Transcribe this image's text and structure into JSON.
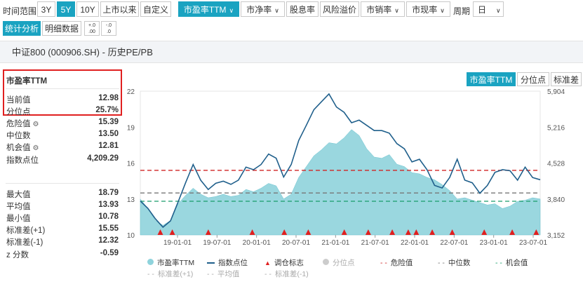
{
  "toolbar": {
    "range_label": "时间范围",
    "range_buttons": [
      "3Y",
      "5Y",
      "10Y",
      "上市以来",
      "自定义"
    ],
    "active_range": "5Y",
    "metrics": [
      "市盈率TTM",
      "市净率",
      "股息率",
      "风险溢价",
      "市销率",
      "市现率"
    ],
    "active_metric": "市盈率TTM",
    "period_label": "周期",
    "period_value": "日"
  },
  "subtabs": [
    "统计分析",
    "明细数据"
  ],
  "active_subtab": "统计分析",
  "page_title": "中证800 (000906.SH) - 历史PE/PB",
  "stats": {
    "header": "市盈率TTM",
    "current_label": "当前值",
    "current_value": "12.98",
    "pct_label": "分位点",
    "pct_value": "25.7%",
    "danger_label": "危险值",
    "danger_value": "15.39",
    "median_label": "中位数",
    "median_value": "13.50",
    "chance_label": "机会值",
    "chance_value": "12.81",
    "index_label": "指数点位",
    "index_value": "4,209.29",
    "max_label": "最大值",
    "max_value": "18.79",
    "avg_label": "平均值",
    "avg_value": "13.93",
    "min_label": "最小值",
    "min_value": "10.78",
    "sdp_label": "标准差(+1)",
    "sdp_value": "15.55",
    "sdm_label": "标准差(-1)",
    "sdm_value": "12.32",
    "z_label": "z 分数",
    "z_value": "-0.59"
  },
  "right_buttons": [
    "市盈率TTM",
    "分位点",
    "标准差"
  ],
  "active_right": "市盈率TTM",
  "chart_data": {
    "type": "area",
    "yaxis_left": [
      "22",
      "19",
      "16",
      "13",
      "10"
    ],
    "yaxis_right": [
      "5,904",
      "5,216",
      "4,528",
      "3,840",
      "3,152"
    ],
    "ylim_left": [
      10,
      22
    ],
    "ylim_right": [
      3152,
      5904
    ],
    "x_ticks": [
      "19-01-01",
      "19-07-01",
      "20-01-01",
      "20-07-01",
      "21-01-01",
      "21-07-01",
      "22-01-01",
      "22-07-01",
      "23-01-01",
      "23-07-01"
    ],
    "danger_value": 15.39,
    "median_value": 13.5,
    "chance_value": 12.81,
    "series": [
      {
        "name": "市盈率TTM",
        "color": "#8fd3dc",
        "values": [
          13.0,
          12.2,
          11.2,
          10.8,
          11.2,
          12.6,
          13.3,
          13.9,
          13.4,
          13.1,
          13.2,
          13.4,
          13.2,
          13.3,
          13.8,
          13.6,
          13.9,
          14.3,
          14.1,
          13.0,
          13.4,
          14.8,
          15.7,
          16.6,
          17.1,
          17.7,
          17.6,
          18.1,
          18.8,
          18.3,
          17.2,
          16.5,
          16.4,
          16.7,
          15.9,
          15.7,
          15.2,
          15.1,
          14.8,
          14.6,
          14.2,
          13.7,
          13.0,
          13.1,
          12.9,
          12.7,
          12.5,
          12.6,
          12.2,
          12.4,
          12.8,
          12.9,
          13.1,
          13.0
        ]
      },
      {
        "name": "指数点位",
        "color": "#1f5f8b",
        "values": [
          3800,
          3660,
          3460,
          3300,
          3420,
          3780,
          4150,
          4500,
          4200,
          4020,
          4140,
          4180,
          4120,
          4200,
          4450,
          4400,
          4500,
          4700,
          4620,
          4260,
          4500,
          4960,
          5250,
          5550,
          5700,
          5850,
          5600,
          5500,
          5300,
          5350,
          5250,
          5150,
          5150,
          5100,
          4900,
          4800,
          4550,
          4600,
          4400,
          4100,
          4050,
          4250,
          4600,
          4200,
          4150,
          3950,
          4100,
          4350,
          4400,
          4380,
          4200,
          4450,
          4250,
          4209
        ]
      }
    ],
    "markers_x": [
      0.05,
      0.08,
      0.17,
      0.28,
      0.36,
      0.42,
      0.51,
      0.57,
      0.63,
      0.67,
      0.69,
      0.73,
      0.78,
      0.86,
      0.93,
      0.99
    ],
    "legend": [
      "市盈率TTM",
      "指数点位",
      "调仓标志",
      "分位点",
      "危险值",
      "中位数",
      "机会值",
      "标准差(+1)",
      "平均值",
      "标准差(-1)"
    ]
  },
  "colors": {
    "accent": "#1aa3c1",
    "danger": "#d02525",
    "median": "#777777",
    "chance": "#199c6a",
    "marker": "#e02020"
  }
}
